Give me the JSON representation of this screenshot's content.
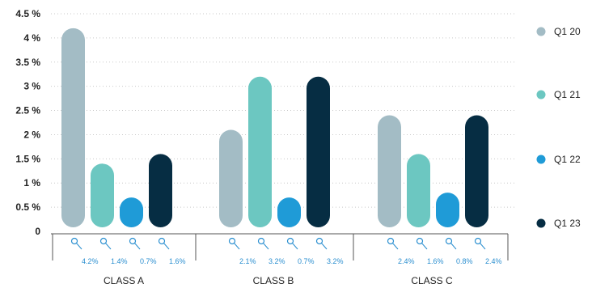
{
  "chart_data": {
    "type": "bar",
    "categories": [
      "CLASS A",
      "CLASS B",
      "CLASS C"
    ],
    "series": [
      {
        "name": "Q1 20",
        "color": "#a3bcc5",
        "values": [
          4.2,
          2.1,
          2.4
        ],
        "labels": [
          "4.2%",
          "2.1%",
          "2.4%"
        ]
      },
      {
        "name": "Q1 21",
        "color": "#6cc7c1",
        "values": [
          1.4,
          3.2,
          1.6
        ],
        "labels": [
          "1.4%",
          "3.2%",
          "1.6%"
        ]
      },
      {
        "name": "Q1 22",
        "color": "#1f9bd7",
        "values": [
          0.7,
          0.7,
          0.8
        ],
        "labels": [
          "0.7%",
          "0.7%",
          "0.8%"
        ]
      },
      {
        "name": "Q1 23",
        "color": "#062d43",
        "values": [
          1.6,
          3.2,
          2.4
        ],
        "labels": [
          "1.6%",
          "3.2%",
          "2.4%"
        ]
      }
    ],
    "yticks": [
      "0",
      "0.5 %",
      "1 %",
      "1.5 %",
      "2 %",
      "2.5 %",
      "3 %",
      "3.5 %",
      "4 %",
      "4.5 %"
    ],
    "ylim": [
      0,
      4.5
    ],
    "grid": "horizontal-dotted",
    "legend": "right"
  }
}
